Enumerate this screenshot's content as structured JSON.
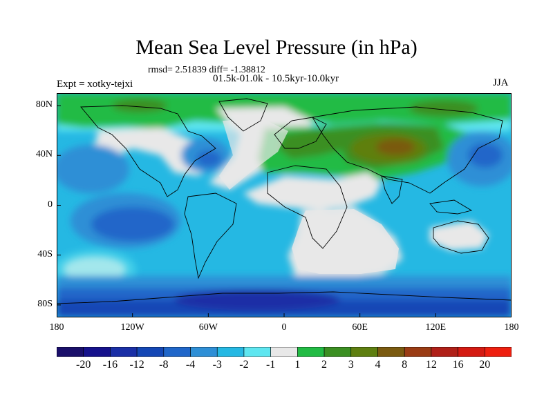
{
  "title": "Mean Sea Level Pressure (in hPa)",
  "stats_line": "rmsd= 2.51839 diff= -1.38812",
  "period_line": "01.5k-01.0k - 10.5kyr-10.0kyr",
  "experiment_label": "Expt = xotky-tejxi",
  "season_label": "JJA",
  "lat_ticks": [
    {
      "label": "80N",
      "lat": 80
    },
    {
      "label": "40N",
      "lat": 40
    },
    {
      "label": "0",
      "lat": 0
    },
    {
      "label": "40S",
      "lat": -40
    },
    {
      "label": "80S",
      "lat": -80
    }
  ],
  "lon_ticks": [
    {
      "label": "180",
      "lon": -180
    },
    {
      "label": "120W",
      "lon": -120
    },
    {
      "label": "60W",
      "lon": -60
    },
    {
      "label": "0",
      "lon": 0
    },
    {
      "label": "60E",
      "lon": 60
    },
    {
      "label": "120E",
      "lon": 120
    },
    {
      "label": "180",
      "lon": 180
    }
  ],
  "colorbar": {
    "labels": [
      "-20",
      "-16",
      "-12",
      "-8",
      "-4",
      "-3",
      "-2",
      "-1",
      "1",
      "2",
      "3",
      "4",
      "8",
      "12",
      "16",
      "20"
    ],
    "colors": [
      "#1a0f6a",
      "#16128c",
      "#1a2fa6",
      "#1447b5",
      "#2066c9",
      "#2e8fd6",
      "#25b8e3",
      "#5ee6f0",
      "#e8e8e8",
      "#22bb44",
      "#3b8f22",
      "#5e7f10",
      "#7a5a10",
      "#9a3c14",
      "#b02018",
      "#d41a12",
      "#ee1f0f"
    ]
  },
  "chart_data": {
    "type": "heatmap",
    "variable": "Mean Sea Level Pressure",
    "units": "hPa",
    "xlim": [
      -180,
      180
    ],
    "ylim": [
      -90,
      90
    ],
    "levels": [
      -20,
      -16,
      -12,
      -8,
      -4,
      -3,
      -2,
      -1,
      1,
      2,
      3,
      4,
      8,
      12,
      16,
      20
    ]
  }
}
